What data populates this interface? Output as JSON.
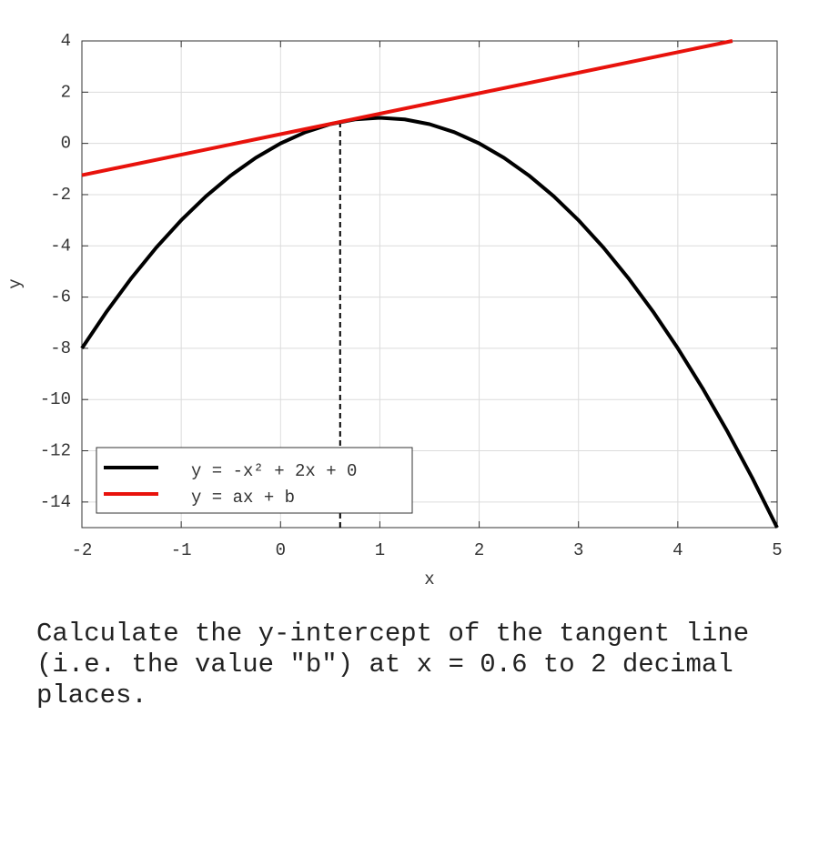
{
  "chart_data": {
    "type": "line",
    "xlabel": "x",
    "ylabel": "y",
    "xlim": [
      -2,
      5
    ],
    "ylim": [
      -15,
      4
    ],
    "xticks": [
      -2,
      -1,
      0,
      1,
      2,
      3,
      4,
      5
    ],
    "yticks": [
      -14,
      -12,
      -10,
      -8,
      -6,
      -4,
      -2,
      0,
      2,
      4
    ],
    "grid": true,
    "legend_position": "lower left",
    "series": [
      {
        "name": "y = -x² + 2x + 0",
        "color": "#000000",
        "x": [
          -2,
          -1.75,
          -1.5,
          -1.25,
          -1,
          -0.75,
          -0.5,
          -0.25,
          0,
          0.25,
          0.5,
          0.75,
          1,
          1.25,
          1.5,
          1.75,
          2,
          2.25,
          2.5,
          2.75,
          3,
          3.25,
          3.5,
          3.75,
          4,
          4.25,
          4.5,
          4.75,
          5
        ],
        "values": [
          -8,
          -6.5625,
          -5.25,
          -4.0625,
          -3,
          -2.0625,
          -1.25,
          -0.5625,
          0,
          0.4375,
          0.75,
          0.9375,
          1,
          0.9375,
          0.75,
          0.4375,
          0,
          -0.5625,
          -1.25,
          -2.0625,
          -3,
          -4.0625,
          -5.25,
          -6.5625,
          -8,
          -9.5625,
          -11.25,
          -13.0625,
          -15
        ]
      },
      {
        "name": "y = ax + b",
        "color": "#e8120c",
        "x": [
          -2,
          4.55
        ],
        "values": [
          -1.24,
          4
        ]
      }
    ],
    "reference_line": {
      "x": [
        0.6,
        0.6
      ],
      "values": [
        -15,
        0.84
      ],
      "color": "#000000"
    }
  },
  "question": "Calculate the y-intercept of the tangent line (i.e. the value \"b\") at x = 0.6 to 2 decimal places."
}
